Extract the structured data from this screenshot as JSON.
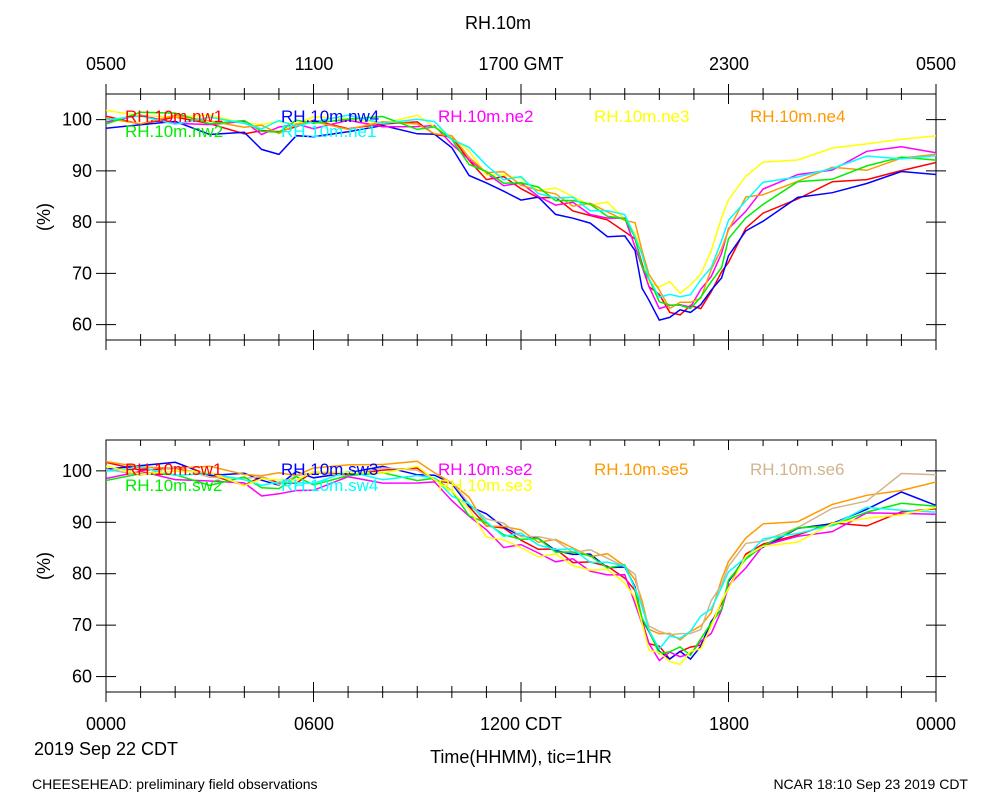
{
  "title": "RH.10m",
  "top_axis_labels": [
    "0500",
    "1100",
    "1700 GMT",
    "2300",
    "0500"
  ],
  "bottom_axis_labels": [
    "0000",
    "0600",
    "1200 CDT",
    "1800",
    "0000"
  ],
  "date_label": "2019 Sep 22 CDT",
  "xlabel": "Time(HHMM), tic=1HR",
  "footer_left": "CHEESEHEAD: preliminary field observations",
  "footer_right": "NCAR 18:10 Sep 23 2019 CDT",
  "chart_data": [
    {
      "type": "line",
      "name": "top-panel",
      "ylabel": "(%)",
      "xlim": [
        0,
        24
      ],
      "ylim": [
        57,
        105
      ],
      "yticks": [
        60,
        70,
        80,
        90,
        100
      ],
      "x_hours": [
        0,
        1,
        2,
        3,
        4,
        4.5,
        5,
        5.5,
        6,
        7,
        8,
        9,
        9.5,
        10,
        10.5,
        11,
        11.5,
        12,
        12.5,
        13,
        13.5,
        14,
        14.5,
        15,
        15.3,
        15.5,
        15.7,
        16,
        16.3,
        16.6,
        16.9,
        17.2,
        17.5,
        17.8,
        18,
        18.5,
        19,
        20,
        21,
        22,
        23,
        24
      ],
      "series": [
        {
          "name": "RH.10m.nw1",
          "color": "#ff0000",
          "values": [
            100,
            100,
            100,
            99,
            98,
            97,
            98,
            99,
            99,
            99,
            99,
            99,
            98,
            96,
            92,
            89,
            88,
            87,
            85,
            84,
            83,
            81,
            80,
            79,
            76,
            72,
            68,
            65,
            63,
            62,
            63,
            64,
            66,
            70,
            73,
            78,
            82,
            85,
            87,
            89,
            90,
            91
          ]
        },
        {
          "name": "RH.10m.nw4",
          "color": "#0000ff",
          "values": [
            99,
            99,
            99,
            98,
            97,
            94,
            94,
            96,
            97,
            98,
            98,
            98,
            97,
            94,
            90,
            87,
            86,
            85,
            84,
            82,
            81,
            79,
            78,
            77,
            74,
            68,
            64,
            61,
            62,
            62,
            63,
            64,
            66,
            70,
            73,
            78,
            81,
            84,
            86,
            88,
            89,
            90
          ]
        },
        {
          "name": "RH.10m.ne2",
          "color": "#ff00ff",
          "values": [
            100,
            100,
            100,
            99,
            99,
            98,
            98,
            99,
            99,
            99,
            99,
            99,
            98,
            96,
            92,
            89,
            88,
            87,
            85,
            84,
            83,
            82,
            81,
            80,
            76,
            71,
            67,
            64,
            63,
            64,
            64,
            66,
            70,
            74,
            78,
            83,
            86,
            89,
            91,
            93,
            95,
            94
          ]
        },
        {
          "name": "RH.10m.ne3",
          "color": "#ffff00",
          "values": [
            101,
            101,
            101,
            100,
            100,
            99,
            99,
            100,
            100,
            100,
            100,
            100,
            99,
            97,
            93,
            90,
            89,
            88,
            87,
            86,
            85,
            84,
            83,
            81,
            78,
            73,
            69,
            67,
            68,
            67,
            67,
            70,
            75,
            80,
            85,
            89,
            91,
            93,
            94,
            95,
            97,
            96
          ]
        },
        {
          "name": "RH.10m.ne4",
          "color": "#ff9900",
          "values": [
            100,
            100,
            100,
            100,
            99,
            98,
            98,
            99,
            99,
            99,
            99,
            99,
            98,
            96,
            93,
            90,
            89,
            88,
            86,
            85,
            84,
            83,
            82,
            81,
            79,
            75,
            70,
            66,
            64,
            64,
            64,
            66,
            70,
            75,
            79,
            84,
            86,
            88,
            90,
            91,
            92,
            93
          ]
        },
        {
          "name": "RH.10m.nw2",
          "color": "#00ee00",
          "values": [
            100,
            101,
            101,
            100,
            99,
            98,
            98,
            99,
            100,
            100,
            100,
            99,
            98,
            96,
            92,
            89,
            88,
            88,
            86,
            85,
            84,
            83,
            82,
            80,
            77,
            72,
            68,
            65,
            64,
            63,
            64,
            65,
            68,
            72,
            76,
            81,
            84,
            87,
            89,
            91,
            92,
            93
          ]
        },
        {
          "name": "RH.10m.ne1",
          "color": "#00ffff",
          "values": [
            100,
            100,
            100,
            100,
            99,
            99,
            99,
            99,
            100,
            100,
            100,
            100,
            99,
            97,
            94,
            91,
            89,
            88,
            86,
            85,
            84,
            83,
            82,
            81,
            78,
            73,
            69,
            66,
            65,
            66,
            66,
            68,
            72,
            76,
            80,
            85,
            87,
            89,
            91,
            92,
            93,
            93
          ]
        }
      ],
      "legend": [
        {
          "label": "RH.10m.nw1",
          "color": "#ff0000"
        },
        {
          "label": "RH.10m.nw4",
          "color": "#0000ff"
        },
        {
          "label": "RH.10m.ne2",
          "color": "#ff00ff"
        },
        {
          "label": "RH.10m.ne3",
          "color": "#ffff00"
        },
        {
          "label": "RH.10m.ne4",
          "color": "#ff9900"
        },
        {
          "label": "RH.10m.nw2",
          "color": "#00ee00"
        },
        {
          "label": "RH.10m.ne1",
          "color": "#00ffff"
        }
      ]
    },
    {
      "type": "line",
      "name": "bottom-panel",
      "ylabel": "(%)",
      "xlim": [
        0,
        24
      ],
      "ylim": [
        57,
        106
      ],
      "yticks": [
        60,
        70,
        80,
        90,
        100
      ],
      "x_hours": [
        0,
        1,
        2,
        3,
        4,
        4.5,
        5,
        5.5,
        6,
        7,
        8,
        9,
        9.5,
        10,
        10.5,
        11,
        11.5,
        12,
        12.5,
        13,
        13.5,
        14,
        14.5,
        15,
        15.3,
        15.5,
        15.7,
        16,
        16.3,
        16.6,
        16.9,
        17.2,
        17.5,
        17.8,
        18,
        18.5,
        19,
        20,
        21,
        22,
        23,
        24
      ],
      "series": [
        {
          "name": "RH.10m.sw1",
          "color": "#ff0000",
          "values": [
            101,
            101,
            100,
            99,
            98,
            98,
            98,
            98,
            99,
            100,
            100,
            100,
            99,
            97,
            93,
            90,
            88,
            87,
            85,
            84,
            83,
            82,
            81,
            80,
            76,
            71,
            67,
            65,
            64,
            65,
            65,
            67,
            70,
            74,
            78,
            83,
            86,
            88,
            89,
            90,
            92,
            92
          ]
        },
        {
          "name": "RH.10m.sw3",
          "color": "#0000ff",
          "values": [
            101,
            101,
            101,
            100,
            99,
            98,
            98,
            99,
            99,
            100,
            100,
            100,
            99,
            97,
            94,
            91,
            89,
            88,
            86,
            85,
            84,
            83,
            82,
            81,
            77,
            72,
            68,
            65,
            64,
            64,
            64,
            66,
            70,
            74,
            78,
            83,
            86,
            88,
            90,
            93,
            95,
            94
          ]
        },
        {
          "name": "RH.10m.se2",
          "color": "#ff00ff",
          "values": [
            99,
            99,
            99,
            98,
            97,
            96,
            95,
            96,
            97,
            98,
            98,
            98,
            97,
            95,
            91,
            88,
            86,
            85,
            84,
            83,
            82,
            81,
            80,
            79,
            75,
            70,
            66,
            64,
            64,
            64,
            65,
            66,
            69,
            73,
            77,
            82,
            85,
            87,
            89,
            91,
            92,
            92
          ]
        },
        {
          "name": "RH.10m.se5",
          "color": "#ff9900",
          "values": [
            101,
            101,
            101,
            100,
            100,
            99,
            99,
            100,
            100,
            101,
            102,
            101,
            100,
            98,
            94,
            90,
            89,
            88,
            87,
            86,
            85,
            84,
            83,
            82,
            79,
            74,
            70,
            68,
            68,
            68,
            68,
            70,
            73,
            78,
            83,
            87,
            89,
            91,
            93,
            95,
            97,
            97
          ]
        },
        {
          "name": "RH.10m.se6",
          "color": "#d2b48c",
          "values": [
            100,
            100,
            100,
            99,
            99,
            98,
            98,
            99,
            99,
            100,
            100,
            100,
            99,
            97,
            94,
            91,
            89,
            88,
            87,
            86,
            85,
            84,
            83,
            82,
            79,
            74,
            70,
            68,
            69,
            68,
            68,
            70,
            74,
            78,
            82,
            85,
            87,
            89,
            92,
            95,
            99,
            99
          ]
        },
        {
          "name": "RH.10m.sw2",
          "color": "#00ee00",
          "values": [
            99,
            99,
            99,
            98,
            98,
            97,
            97,
            98,
            98,
            99,
            99,
            99,
            98,
            96,
            92,
            89,
            88,
            87,
            86,
            85,
            84,
            83,
            82,
            81,
            77,
            72,
            68,
            65,
            65,
            65,
            65,
            67,
            70,
            74,
            78,
            83,
            86,
            88,
            90,
            92,
            93,
            94
          ]
        },
        {
          "name": "RH.10m.sw4",
          "color": "#00ffff",
          "values": [
            100,
            100,
            100,
            99,
            98,
            98,
            97,
            98,
            98,
            99,
            99,
            99,
            98,
            96,
            93,
            90,
            88,
            87,
            86,
            85,
            84,
            83,
            82,
            81,
            78,
            73,
            69,
            66,
            67,
            68,
            69,
            71,
            74,
            77,
            80,
            84,
            86,
            88,
            90,
            92,
            93,
            92
          ]
        },
        {
          "name": "RH.10m.se3",
          "color": "#ffff00",
          "values": [
            100,
            100,
            100,
            99,
            98,
            98,
            98,
            99,
            99,
            100,
            100,
            100,
            99,
            96,
            92,
            88,
            86,
            85,
            84,
            83,
            82,
            81,
            80,
            79,
            75,
            70,
            66,
            64,
            63,
            63,
            64,
            66,
            70,
            74,
            78,
            83,
            85,
            87,
            89,
            91,
            92,
            92
          ]
        }
      ],
      "legend": [
        {
          "label": "RH.10m.sw1",
          "color": "#ff0000"
        },
        {
          "label": "RH.10m.sw3",
          "color": "#0000ff"
        },
        {
          "label": "RH.10m.se2",
          "color": "#ff00ff"
        },
        {
          "label": "RH.10m.se5",
          "color": "#ff9900"
        },
        {
          "label": "RH.10m.se6",
          "color": "#d2b48c"
        },
        {
          "label": "RH.10m.sw2",
          "color": "#00ee00"
        },
        {
          "label": "RH.10m.sw4",
          "color": "#00ffff"
        },
        {
          "label": "RH.10m.se3",
          "color": "#ffff00"
        }
      ]
    }
  ]
}
